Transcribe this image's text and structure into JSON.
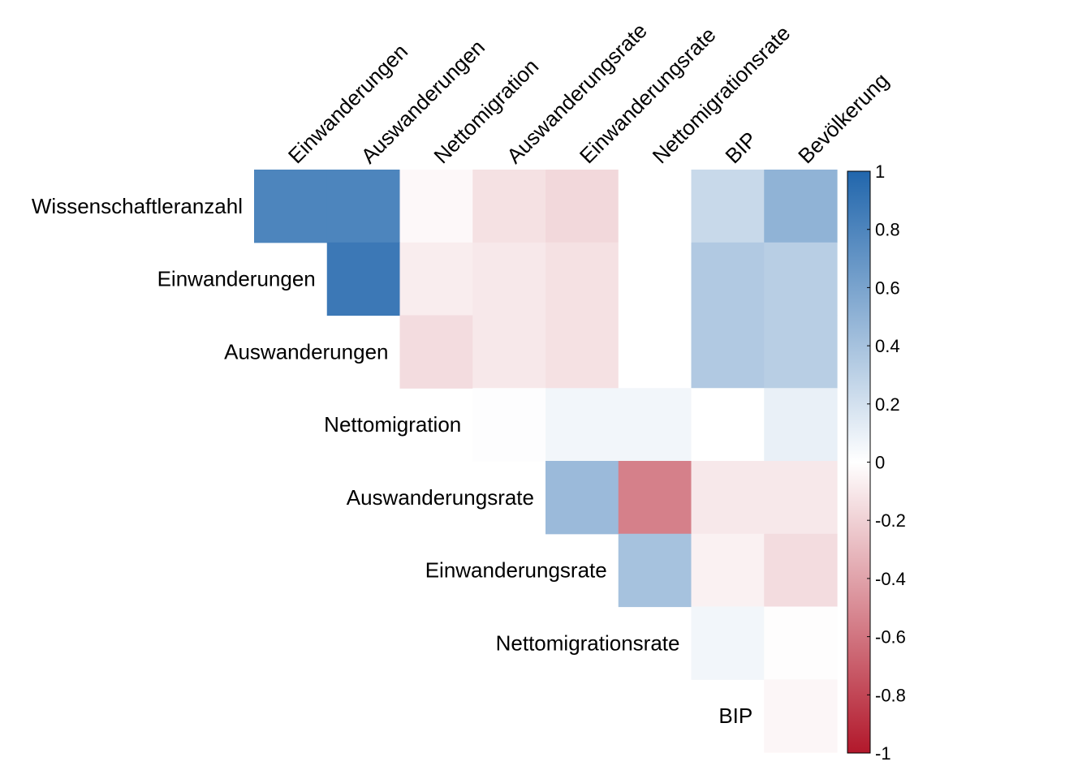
{
  "chart_data": {
    "type": "heatmap",
    "layout": "upper-triangle correlation matrix",
    "rows": [
      "Wissenschaftleranzahl",
      "Einwanderungen",
      "Auswanderungen",
      "Nettomigration",
      "Auswanderungsrate",
      "Einwanderungsrate",
      "Nettomigrationsrate",
      "BIP"
    ],
    "columns": [
      "Einwanderungen",
      "Auswanderungen",
      "Nettomigration",
      "Auswanderungsrate",
      "Einwanderungsrate",
      "Nettomigrationsrate",
      "BIP",
      "Bevölkerung"
    ],
    "values": [
      [
        0.8,
        0.8,
        -0.03,
        -0.13,
        -0.17,
        0.0,
        0.25,
        0.5
      ],
      [
        null,
        0.88,
        -0.08,
        -0.1,
        -0.13,
        0.0,
        0.35,
        0.32
      ],
      [
        null,
        null,
        -0.15,
        -0.1,
        -0.13,
        0.0,
        0.35,
        0.32
      ],
      [
        null,
        null,
        null,
        0.01,
        0.06,
        0.06,
        0.0,
        0.1
      ],
      [
        null,
        null,
        null,
        null,
        0.45,
        -0.55,
        -0.1,
        -0.1
      ],
      [
        null,
        null,
        null,
        null,
        null,
        0.4,
        -0.06,
        -0.15
      ],
      [
        null,
        null,
        null,
        null,
        null,
        null,
        0.06,
        -0.01
      ],
      [
        null,
        null,
        null,
        null,
        null,
        null,
        null,
        -0.04
      ]
    ],
    "color_scale": {
      "range": [
        -1,
        1
      ],
      "ticks": [
        1,
        0.8,
        0.6,
        0.4,
        0.2,
        0,
        -0.2,
        -0.4,
        -0.6,
        -0.8,
        -1
      ],
      "tick_labels": [
        "1",
        "0.8",
        "0.6",
        "0.4",
        "0.2",
        "0",
        "-0.2",
        "-0.4",
        "-0.6",
        "-0.8",
        "-1"
      ],
      "low_color": "#b2182b",
      "mid_color": "#ffffff",
      "high_color": "#2166ac",
      "legend_placement": "right"
    }
  }
}
